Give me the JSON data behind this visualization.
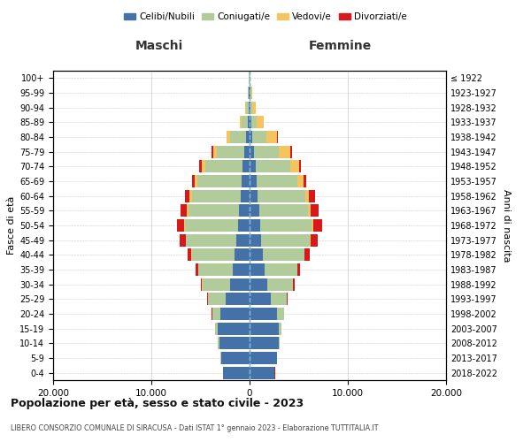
{
  "age_groups": [
    "0-4",
    "5-9",
    "10-14",
    "15-19",
    "20-24",
    "25-29",
    "30-34",
    "35-39",
    "40-44",
    "45-49",
    "50-54",
    "55-59",
    "60-64",
    "65-69",
    "70-74",
    "75-79",
    "80-84",
    "85-89",
    "90-94",
    "95-99",
    "100+"
  ],
  "birth_years": [
    "2018-2022",
    "2013-2017",
    "2008-2012",
    "2003-2007",
    "1998-2002",
    "1993-1997",
    "1988-1992",
    "1983-1987",
    "1978-1982",
    "1973-1977",
    "1968-1972",
    "1963-1967",
    "1958-1962",
    "1953-1957",
    "1948-1952",
    "1943-1947",
    "1938-1942",
    "1933-1937",
    "1928-1932",
    "1923-1927",
    "≤ 1922"
  ],
  "maschi": {
    "celibi": [
      2700,
      2900,
      3100,
      3200,
      3000,
      2400,
      2000,
      1700,
      1500,
      1350,
      1200,
      1050,
      900,
      800,
      700,
      500,
      350,
      200,
      130,
      80,
      30
    ],
    "coniugati": [
      20,
      50,
      100,
      300,
      800,
      1800,
      2800,
      3500,
      4400,
      5100,
      5400,
      5200,
      5000,
      4500,
      3800,
      2800,
      1600,
      600,
      200,
      60,
      20
    ],
    "vedovi": [
      1,
      1,
      2,
      3,
      5,
      10,
      20,
      30,
      50,
      80,
      100,
      150,
      200,
      250,
      350,
      400,
      350,
      200,
      80,
      20,
      5
    ],
    "divorziati": [
      2,
      3,
      5,
      10,
      30,
      80,
      150,
      250,
      400,
      600,
      700,
      600,
      500,
      350,
      250,
      150,
      60,
      30,
      15,
      5,
      2
    ]
  },
  "femmine": {
    "nubili": [
      2550,
      2750,
      2950,
      3000,
      2800,
      2200,
      1800,
      1550,
      1350,
      1200,
      1100,
      950,
      850,
      700,
      600,
      450,
      300,
      180,
      120,
      70,
      25
    ],
    "coniugate": [
      15,
      40,
      80,
      250,
      700,
      1600,
      2600,
      3300,
      4200,
      4900,
      5200,
      5000,
      4800,
      4200,
      3500,
      2500,
      1400,
      550,
      180,
      50,
      15
    ],
    "vedove": [
      1,
      1,
      2,
      3,
      5,
      10,
      20,
      35,
      60,
      100,
      150,
      250,
      400,
      600,
      900,
      1200,
      1100,
      700,
      350,
      120,
      30
    ],
    "divorziate": [
      2,
      3,
      5,
      10,
      30,
      80,
      160,
      280,
      500,
      750,
      900,
      800,
      600,
      300,
      200,
      150,
      60,
      30,
      15,
      5,
      2
    ]
  },
  "colors": {
    "celibi": "#4472a8",
    "coniugati": "#b2cb9a",
    "vedovi": "#f5c45e",
    "divorziati": "#d7191c"
  },
  "xlim": 20000,
  "xticks": [
    -20000,
    -10000,
    0,
    10000,
    20000
  ],
  "xtick_labels": [
    "20.000",
    "10.000",
    "0",
    "10.000",
    "20.000"
  ],
  "title": "Popolazione per età, sesso e stato civile - 2023",
  "subtitle": "LIBERO CONSORZIO COMUNALE DI SIRACUSA - Dati ISTAT 1° gennaio 2023 - Elaborazione TUTTITALIA.IT",
  "ylabel_left": "Fasce di età",
  "ylabel_right": "Anni di nascita",
  "legend_labels": [
    "Celibi/Nubili",
    "Coniugati/e",
    "Vedovi/e",
    "Divorziati/e"
  ],
  "maschi_label": "Maschi",
  "femmine_label": "Femmine",
  "background_color": "#ffffff",
  "grid_color": "#cccccc"
}
